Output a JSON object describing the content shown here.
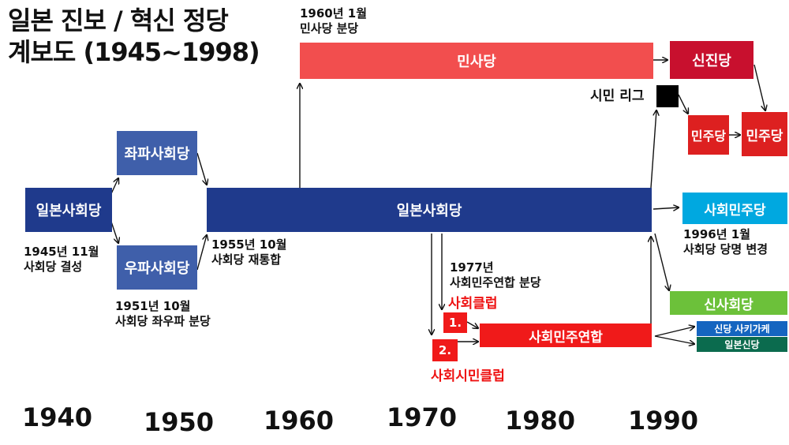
{
  "title": {
    "line1": "일본 진보 / 혁신 정당",
    "line2": "계보도 (1945~1998)"
  },
  "parties": {
    "jsp_1945": "일본사회당",
    "left_jsp": "좌파사회당",
    "right_jsp": "우파사회당",
    "jsp_main": "일본사회당",
    "dsp": "민사당",
    "shinshinto": "신진당",
    "minshuto_1": "민주당",
    "minshuto_2": "민주당",
    "sdp": "사회민주당",
    "new_socialist": "신사회당",
    "sdf": "사회민주연합",
    "sakigake": "신당 사키가케",
    "japan_new_party": "일본신당",
    "club_1": "1.",
    "club_2": "2."
  },
  "labels": {
    "citizens_league": "시민 리그",
    "socialist_club": "사회클럽",
    "socialist_citizens_club": "사회시민클럽"
  },
  "notes": {
    "n1945_l1": "1945년 11월",
    "n1945_l2": "사회당 결성",
    "n1951_l1": "1951년 10월",
    "n1951_l2": "사회당 좌우파 분당",
    "n1955_l1": "1955년 10월",
    "n1955_l2": "사회당 재통합",
    "n1960_l1": "1960년 1월",
    "n1960_l2": "민사당 분당",
    "n1977_l1": "1977년",
    "n1977_l2": "사회민주연합 분당",
    "n1996_l1": "1996년 1월",
    "n1996_l2": "사회당 당명 변경"
  },
  "timeline": [
    "1940",
    "1950",
    "1960",
    "1970",
    "1980",
    "1990"
  ],
  "colors": {
    "navy": "#1f3a8c",
    "slate_blue": "#3f5faa",
    "red": "#f01a1a",
    "coral": "#f24e4e",
    "crimson": "#c8102e",
    "sky": "#00a8e0",
    "green": "#6cc13a",
    "teal": "#0b6b4e",
    "royal": "#1565c0"
  }
}
